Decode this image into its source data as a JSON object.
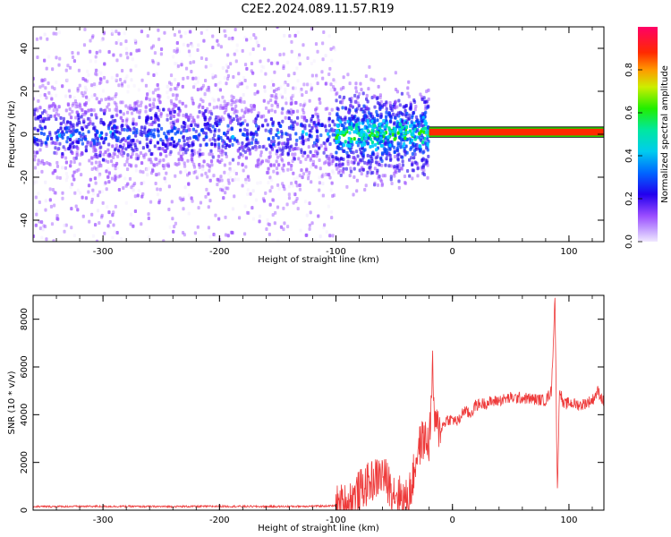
{
  "title": "C2E2.2024.089.11.57.R19",
  "colors": {
    "snr_line": "#ee3a3a",
    "background": "#ffffff",
    "axis": "#000000"
  },
  "chart_data": [
    {
      "type": "heatmap",
      "xlabel": "Height of straight line (km)",
      "ylabel": "Frequency (Hz)",
      "xlim": [
        -360,
        130
      ],
      "ylim": [
        -50,
        50
      ],
      "xticks": [
        -300,
        -200,
        -100,
        0,
        100
      ],
      "yticks": [
        -40,
        -20,
        0,
        20,
        40
      ],
      "colorbar": {
        "label": "Normalized spectral amplitude",
        "range": [
          0,
          1
        ],
        "ticks": [
          0.0,
          0.2,
          0.4,
          0.6,
          0.8
        ],
        "colormap": [
          "#f0e8ff",
          "#9a4dff",
          "#2200ee",
          "#0044ff",
          "#00ccff",
          "#00e8a0",
          "#22ee00",
          "#ccee00",
          "#ff9900",
          "#ff2a00",
          "#ff0066"
        ]
      },
      "regions": [
        {
          "x_range": [
            -360,
            -100
          ],
          "description_values": {
            "center_freq": 0,
            "half_width": 50,
            "mean_amplitude": 0.2
          }
        },
        {
          "x_range": [
            -100,
            -20
          ],
          "description_values": {
            "center_freq": 0,
            "half_width": 15,
            "mean_amplitude": 0.35
          }
        },
        {
          "x_range": [
            -20,
            130
          ],
          "description_values": {
            "center_freq": 1,
            "half_width": 2,
            "mean_amplitude": 0.9
          }
        }
      ]
    },
    {
      "type": "line",
      "xlabel": "Height of straight line (km)",
      "ylabel": "SNR (10 * v/v)",
      "xlim": [
        -360,
        130
      ],
      "ylim": [
        0,
        9000
      ],
      "xticks": [
        -300,
        -200,
        -100,
        0,
        100
      ],
      "yticks": [
        0,
        2000,
        4000,
        6000,
        8000
      ],
      "series": [
        {
          "x": [
            -360,
            -300,
            -250,
            -200,
            -150,
            -100,
            -90,
            -80,
            -70,
            -60,
            -55,
            -50,
            -45,
            -40,
            -35,
            -30,
            -25,
            -20,
            -17,
            -15,
            -10,
            -5,
            0,
            5,
            10,
            15,
            20,
            30,
            40,
            50,
            60,
            70,
            80,
            85,
            88,
            90,
            92,
            95,
            100,
            110,
            120,
            125,
            130
          ],
          "values": [
            150,
            160,
            150,
            160,
            150,
            180,
            300,
            800,
            1200,
            1500,
            1100,
            800,
            600,
            400,
            1000,
            2500,
            3000,
            2800,
            5800,
            3500,
            3400,
            3800,
            3800,
            3700,
            4200,
            4000,
            4400,
            4500,
            4600,
            4700,
            4700,
            4650,
            4600,
            5000,
            9000,
            700,
            5200,
            4400,
            4500,
            4400,
            4600,
            5000,
            4500
          ]
        }
      ]
    }
  ]
}
